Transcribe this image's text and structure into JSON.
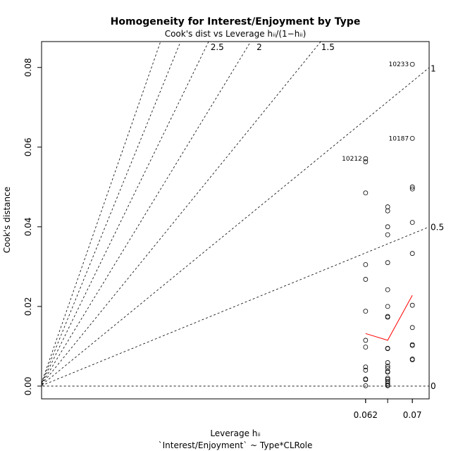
{
  "chart_data": {
    "type": "scatter",
    "title": "Homogeneity for Interest/Enjoyment by Type",
    "subtitle": "Cook's dist vs Leverage  hᵢᵢ/(1−hᵢᵢ)",
    "xlabel": "Leverage  hᵢᵢ",
    "xlabel2": "`Interest/Enjoyment` ~ Type*CLRole",
    "ylabel": "Cook's distance",
    "xlim": [
      0.0,
      0.0738
    ],
    "ylim": [
      -0.0032,
      0.0865
    ],
    "x_ticks": [
      {
        "value": 0.0617,
        "label": "0.062"
      },
      {
        "value": 0.0706,
        "label": "0.07"
      }
    ],
    "y_ticks": [
      {
        "value": 0.0,
        "label": "0.00"
      },
      {
        "value": 0.02,
        "label": "0.02"
      },
      {
        "value": 0.04,
        "label": "0.04"
      },
      {
        "value": 0.06,
        "label": "0.06"
      },
      {
        "value": 0.08,
        "label": "0.08"
      }
    ],
    "grid": false,
    "points_x": [
      0.0617,
      0.0659,
      0.0706
    ],
    "points_y": [
      [
        0.0571,
        0.0563,
        0.0485,
        0.0305,
        0.0268,
        0.0188,
        0.0115,
        0.0098,
        0.0048,
        0.004,
        0.0018,
        0.0016,
        0.0001
      ],
      [
        0.045,
        0.044,
        0.04,
        0.038,
        0.031,
        0.0242,
        0.02,
        0.0175,
        0.0173,
        0.0095,
        0.0094,
        0.0059,
        0.005,
        0.0045,
        0.0037,
        0.0035,
        0.002,
        0.0017,
        0.0012,
        0.0007,
        0.0003,
        0.0001
      ],
      [
        0.0808,
        0.0622,
        0.05,
        0.0495,
        0.0411,
        0.0333,
        0.0203,
        0.0147,
        0.0104,
        0.0102,
        0.0068,
        0.0066
      ]
    ],
    "smooth_line": {
      "x": [
        0.0617,
        0.0659,
        0.0706
      ],
      "y": [
        0.0132,
        0.0115,
        0.0228
      ],
      "color": "#ff0000"
    },
    "labeled_points": [
      {
        "x": 0.0706,
        "y": 0.0808,
        "label": "10233"
      },
      {
        "x": 0.0706,
        "y": 0.0622,
        "label": "10187"
      },
      {
        "x": 0.0617,
        "y": 0.0571,
        "label": "10212"
      }
    ],
    "contour_lines": [
      {
        "k": 0,
        "label": "0"
      },
      {
        "k": 0.5,
        "label": "0.5"
      },
      {
        "k": 1,
        "label": "1"
      },
      {
        "k": 1.5,
        "label": "1.5"
      },
      {
        "k": 2,
        "label": "2"
      },
      {
        "k": 2.5,
        "label": "2.5"
      },
      {
        "k": 3,
        "label": ""
      },
      {
        "k": 3.5,
        "label": ""
      }
    ],
    "point_color": "#000000",
    "reference_color": "#000000"
  }
}
